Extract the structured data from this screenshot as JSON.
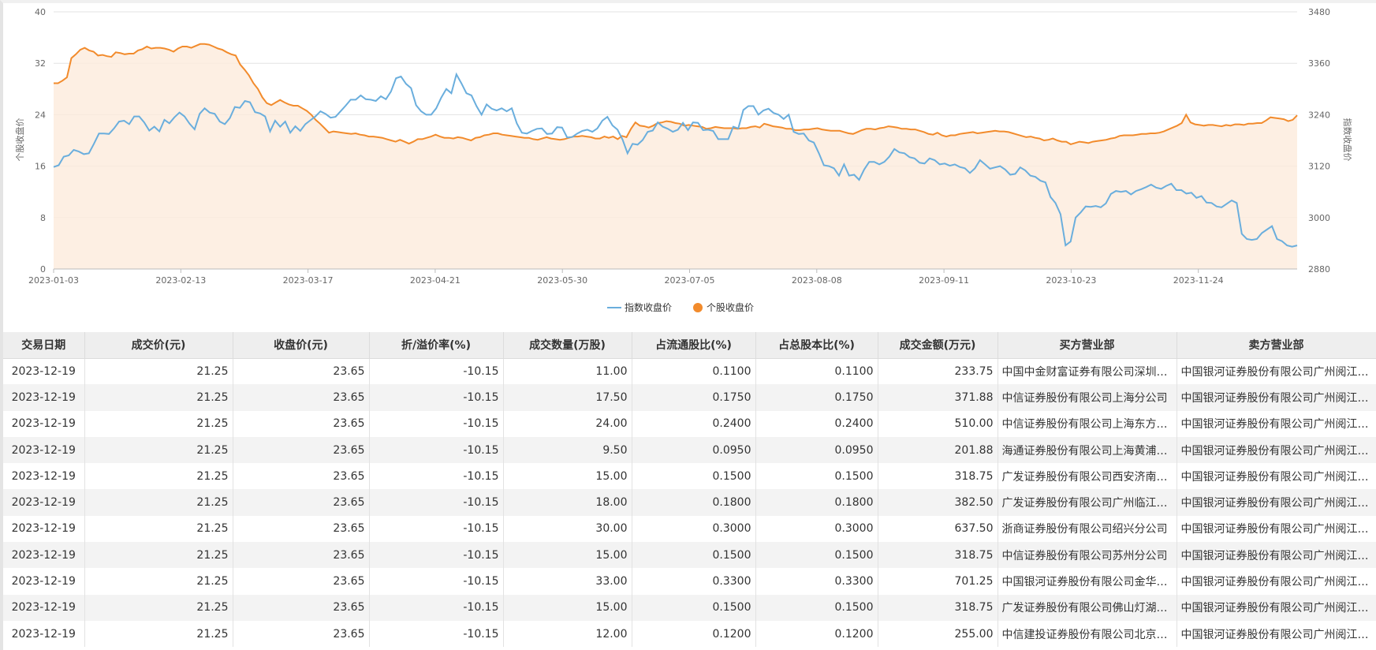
{
  "chart_data": {
    "type": "line",
    "title": "",
    "x_tick_labels": [
      "2023-01-03",
      "2023-02-13",
      "2023-03-17",
      "2023-04-21",
      "2023-05-30",
      "2023-07-05",
      "2023-08-08",
      "2023-09-11",
      "2023-10-23",
      "2023-11-24"
    ],
    "y_left": {
      "label": "个股收盘价",
      "ticks": [
        "0",
        "8",
        "16",
        "24",
        "32",
        "40"
      ],
      "range": [
        0,
        40
      ]
    },
    "y_right": {
      "label": "指数收盘价",
      "ticks": [
        "2880",
        "3000",
        "3120",
        "3240",
        "3360",
        "3480"
      ],
      "range": [
        2880,
        3480
      ]
    },
    "grid": true,
    "legend_position": "bottom-center",
    "series": [
      {
        "name": "指数收盘价",
        "axis": "right",
        "color": "#6aaedd",
        "type": "line",
        "values": [
          3118,
          3122,
          3142,
          3145,
          3158,
          3154,
          3148,
          3150,
          3172,
          3196,
          3196,
          3195,
          3208,
          3224,
          3226,
          3218,
          3236,
          3236,
          3222,
          3203,
          3212,
          3201,
          3228,
          3220,
          3234,
          3245,
          3236,
          3219,
          3206,
          3242,
          3255,
          3245,
          3242,
          3224,
          3218,
          3232,
          3258,
          3256,
          3272,
          3269,
          3246,
          3243,
          3236,
          3201,
          3226,
          3212,
          3224,
          3198,
          3213,
          3202,
          3218,
          3227,
          3236,
          3248,
          3242,
          3233,
          3235,
          3248,
          3261,
          3275,
          3275,
          3285,
          3276,
          3275,
          3272,
          3283,
          3276,
          3294,
          3325,
          3329,
          3312,
          3302,
          3262,
          3248,
          3240,
          3240,
          3255,
          3280,
          3300,
          3290,
          3334,
          3313,
          3290,
          3285,
          3260,
          3240,
          3264,
          3254,
          3250,
          3255,
          3248,
          3255,
          3220,
          3198,
          3196,
          3202,
          3207,
          3208,
          3195,
          3196,
          3211,
          3210,
          3187,
          3188,
          3196,
          3202,
          3205,
          3200,
          3208,
          3226,
          3235,
          3215,
          3205,
          3182,
          3150,
          3172,
          3170,
          3181,
          3200,
          3203,
          3222,
          3212,
          3207,
          3200,
          3205,
          3221,
          3204,
          3222,
          3221,
          3204,
          3205,
          3202,
          3183,
          3183,
          3183,
          3212,
          3208,
          3251,
          3260,
          3260,
          3240,
          3250,
          3254,
          3244,
          3240,
          3230,
          3240,
          3200,
          3195,
          3196,
          3180,
          3175,
          3150,
          3122,
          3120,
          3115,
          3098,
          3124,
          3098,
          3100,
          3088,
          3112,
          3130,
          3130,
          3124,
          3130,
          3142,
          3160,
          3152,
          3150,
          3141,
          3138,
          3128,
          3126,
          3138,
          3134,
          3124,
          3126,
          3121,
          3124,
          3118,
          3115,
          3104,
          3115,
          3134,
          3124,
          3114,
          3117,
          3120,
          3112,
          3100,
          3102,
          3117,
          3110,
          3098,
          3095,
          3086,
          3082,
          3048,
          3034,
          3008,
          2935,
          2944,
          3000,
          3012,
          3026,
          3025,
          3027,
          3024,
          3033,
          3055,
          3062,
          3060,
          3062,
          3054,
          3062,
          3066,
          3071,
          3077,
          3070,
          3067,
          3074,
          3079,
          3064,
          3064,
          3056,
          3058,
          3046,
          3050,
          3035,
          3034,
          3026,
          3024,
          3032,
          3040,
          3034,
          2962,
          2950,
          2948,
          2950,
          2964,
          2972,
          2980,
          2950,
          2945,
          2935,
          2932,
          2935
        ]
      },
      {
        "name": "个股收盘价",
        "axis": "left",
        "color": "#f28b2c",
        "type": "area",
        "values": [
          28.9,
          28.9,
          29.3,
          29.8,
          32.8,
          33.4,
          34.1,
          34.4,
          34.0,
          33.8,
          33.2,
          33.3,
          33.1,
          33.0,
          33.7,
          33.6,
          33.4,
          33.5,
          33.5,
          34.0,
          34.2,
          34.6,
          34.3,
          34.4,
          34.4,
          34.3,
          34.1,
          33.8,
          34.3,
          34.6,
          34.6,
          34.4,
          34.7,
          35.0,
          35.0,
          34.9,
          34.6,
          34.3,
          34.1,
          33.7,
          33.4,
          33.2,
          31.8,
          31.0,
          30.1,
          28.9,
          28.0,
          26.7,
          25.8,
          25.5,
          25.9,
          26.3,
          25.9,
          25.6,
          25.4,
          25.4,
          25.0,
          24.6,
          24.0,
          23.2,
          22.6,
          21.9,
          21.2,
          21.4,
          21.3,
          21.2,
          21.1,
          21.0,
          21.1,
          20.9,
          20.8,
          20.6,
          20.6,
          20.5,
          20.4,
          20.2,
          20.0,
          19.8,
          20.1,
          19.8,
          19.5,
          19.8,
          20.2,
          20.2,
          20.4,
          20.6,
          20.9,
          20.6,
          20.4,
          20.4,
          20.3,
          20.5,
          20.4,
          20.2,
          20.0,
          20.4,
          20.5,
          20.8,
          20.9,
          21.1,
          21.1,
          20.9,
          20.8,
          20.7,
          20.6,
          20.5,
          20.4,
          20.4,
          20.2,
          20.1,
          20.3,
          20.5,
          20.3,
          20.2,
          20.1,
          20.2,
          20.4,
          20.6,
          20.6,
          20.7,
          20.6,
          20.5,
          20.3,
          20.3,
          20.6,
          20.4,
          20.6,
          20.2,
          20.7,
          20.5,
          21.8,
          22.8,
          22.3,
          22.2,
          22.0,
          22.3,
          22.7,
          22.8,
          23.0,
          22.9,
          22.7,
          22.6,
          22.3,
          22.4,
          22.3,
          22.2,
          22.1,
          21.8,
          21.9,
          22.1,
          22.0,
          21.9,
          21.9,
          21.9,
          21.8,
          21.9,
          21.9,
          22.1,
          22.2,
          22.0,
          22.6,
          22.4,
          22.2,
          22.1,
          22.0,
          21.8,
          21.8,
          21.6,
          21.6,
          21.7,
          21.7,
          21.8,
          21.9,
          21.7,
          21.6,
          21.5,
          21.5,
          21.5,
          21.3,
          21.1,
          21.0,
          21.3,
          21.6,
          21.8,
          21.8,
          21.7,
          21.9,
          22.0,
          22.2,
          22.1,
          22.0,
          21.8,
          21.8,
          21.7,
          21.7,
          21.5,
          21.3,
          21.0,
          20.9,
          21.2,
          20.8,
          20.6,
          20.8,
          20.8,
          21.0,
          21.1,
          21.2,
          21.3,
          21.1,
          21.2,
          21.3,
          21.4,
          21.5,
          21.4,
          21.4,
          21.3,
          21.1,
          20.9,
          20.7,
          20.5,
          20.6,
          20.4,
          20.3,
          20.0,
          20.1,
          20.3,
          20.0,
          19.8,
          19.8,
          19.4,
          19.6,
          19.8,
          19.7,
          19.6,
          19.8,
          19.9,
          20.0,
          20.1,
          20.3,
          20.4,
          20.7,
          20.8,
          20.8,
          20.8,
          20.9,
          21.0,
          21.0,
          21.1,
          21.1,
          21.2,
          21.4,
          21.7,
          22.0,
          22.3,
          22.7,
          24.0,
          22.8,
          22.5,
          22.4,
          22.3,
          22.4,
          22.4,
          22.3,
          22.2,
          22.4,
          22.3,
          22.5,
          22.5,
          22.4,
          22.6,
          22.6,
          22.7,
          22.7,
          23.1,
          23.6,
          23.5,
          23.4,
          23.3,
          23.0,
          23.2,
          23.9
        ]
      }
    ],
    "table": {
      "headers": [
        "交易日期",
        "成交价(元)",
        "收盘价(元)",
        "折/溢价率(%)",
        "成交数量(万股)",
        "占流通股比(%)",
        "占总股本比(%)",
        "成交金额(万元)",
        "买方营业部",
        "卖方营业部"
      ],
      "rows": [
        [
          "2023-12-19",
          "21.25",
          "23.65",
          "-10.15",
          "11.00",
          "0.1100",
          "0.1100",
          "233.75",
          "中国中金财富证券有限公司深圳分公司",
          "中国银河证券股份有限公司广州阅江路证券营业部"
        ],
        [
          "2023-12-19",
          "21.25",
          "23.65",
          "-10.15",
          "17.50",
          "0.1750",
          "0.1750",
          "371.88",
          "中信证券股份有限公司上海分公司",
          "中国银河证券股份有限公司广州阅江路证券营业部"
        ],
        [
          "2023-12-19",
          "21.25",
          "23.65",
          "-10.15",
          "24.00",
          "0.2400",
          "0.2400",
          "510.00",
          "中信证券股份有限公司上海东方路证券营业部",
          "中国银河证券股份有限公司广州阅江路证券营业部"
        ],
        [
          "2023-12-19",
          "21.25",
          "23.65",
          "-10.15",
          "9.50",
          "0.0950",
          "0.0950",
          "201.88",
          "海通证券股份有限公司上海黄浦区证券营业部",
          "中国银河证券股份有限公司广州阅江路证券营业部"
        ],
        [
          "2023-12-19",
          "21.25",
          "23.65",
          "-10.15",
          "15.00",
          "0.1500",
          "0.1500",
          "318.75",
          "广发证券股份有限公司西安济南路证券营业部",
          "中国银河证券股份有限公司广州阅江路证券营业部"
        ],
        [
          "2023-12-19",
          "21.25",
          "23.65",
          "-10.15",
          "18.00",
          "0.1800",
          "0.1800",
          "382.50",
          "广发证券股份有限公司广州临江大道证券营业部",
          "中国银河证券股份有限公司广州阅江路证券营业部"
        ],
        [
          "2023-12-19",
          "21.25",
          "23.65",
          "-10.15",
          "30.00",
          "0.3000",
          "0.3000",
          "637.50",
          "浙商证券股份有限公司绍兴分公司",
          "中国银河证券股份有限公司广州阅江路证券营业部"
        ],
        [
          "2023-12-19",
          "21.25",
          "23.65",
          "-10.15",
          "15.00",
          "0.1500",
          "0.1500",
          "318.75",
          "中信证券股份有限公司苏州分公司",
          "中国银河证券股份有限公司广州阅江路证券营业部"
        ],
        [
          "2023-12-19",
          "21.25",
          "23.65",
          "-10.15",
          "33.00",
          "0.3300",
          "0.3300",
          "701.25",
          "中国银河证券股份有限公司金华证券营业部",
          "中国银河证券股份有限公司广州阅江路证券营业部"
        ],
        [
          "2023-12-19",
          "21.25",
          "23.65",
          "-10.15",
          "15.00",
          "0.1500",
          "0.1500",
          "318.75",
          "广发证券股份有限公司佛山灯湖东路证券营业部",
          "中国银河证券股份有限公司广州阅江路证券营业部"
        ],
        [
          "2023-12-19",
          "21.25",
          "23.65",
          "-10.15",
          "12.00",
          "0.1200",
          "0.1200",
          "255.00",
          "中信建投证券股份有限公司北京东城分公司",
          "中国银河证券股份有限公司广州阅江路证券营业部"
        ]
      ]
    }
  }
}
